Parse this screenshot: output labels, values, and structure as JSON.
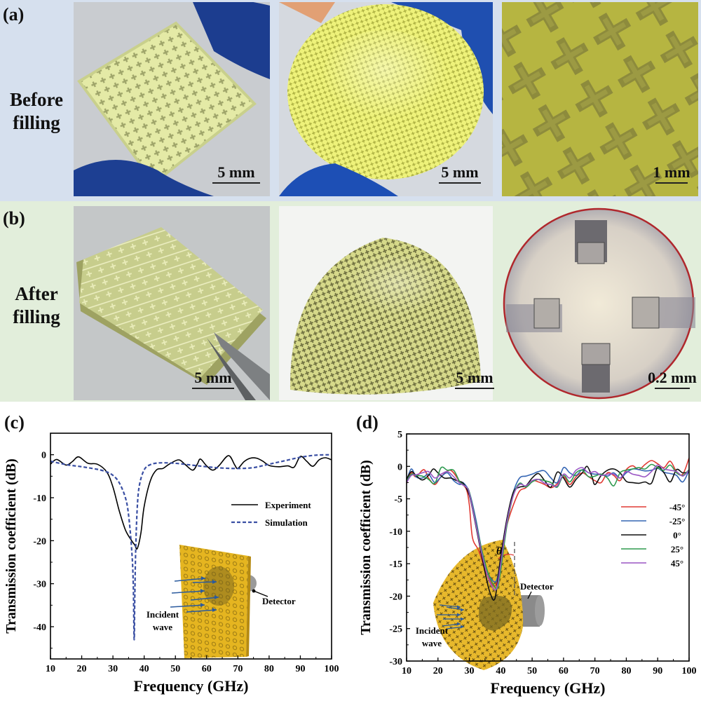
{
  "panels": {
    "a": {
      "label": "(a)",
      "row_label_1": "Before",
      "row_label_2": "filling",
      "scales": [
        "5 mm",
        "5 mm",
        "1 mm"
      ]
    },
    "b": {
      "label": "(b)",
      "row_label_1": "After",
      "row_label_2": "filling",
      "scales": [
        "5 mm",
        "5 mm",
        "0.2 mm"
      ]
    },
    "c": {
      "label": "(c)"
    },
    "d": {
      "label": "(d)"
    }
  },
  "colors": {
    "band_a": "#d6e0ee",
    "band_b": "#e2eedb",
    "sample_yellow": "#e6ec9a",
    "sample_green": "#a9ad55",
    "glove_blue": "#1c3d8f",
    "inset_gold": "#e5b520",
    "circle_border": "#b0272c"
  },
  "chart_data": [
    {
      "type": "line",
      "panel": "(c)",
      "xlabel": "Frequency (GHz)",
      "ylabel": "Transmission coefficient (dB)",
      "xlim": [
        10,
        100
      ],
      "ylim": [
        -47.5,
        5
      ],
      "xticks": [
        10,
        20,
        30,
        40,
        50,
        60,
        70,
        80,
        90,
        100
      ],
      "yticks": [
        0,
        -10,
        -20,
        -30,
        -40
      ],
      "legend_position": "upper-right",
      "series": [
        {
          "name": "Experiment",
          "color": "#000000",
          "style": "solid",
          "x": [
            10,
            12,
            15,
            17,
            19,
            22,
            25,
            28,
            30,
            32,
            34,
            36,
            37,
            37.8,
            39,
            40,
            42,
            44,
            46,
            48,
            51,
            53,
            55.5,
            57,
            58,
            60,
            62,
            64,
            67,
            69,
            70,
            72,
            74,
            76,
            78,
            80,
            83,
            86,
            88,
            90,
            92,
            94,
            96,
            98,
            100
          ],
          "y": [
            -2.2,
            -1.1,
            -2.4,
            -1.6,
            -0.5,
            -2,
            -2.2,
            -4,
            -7.5,
            -13,
            -17.5,
            -20,
            -21,
            -21.8,
            -18,
            -12,
            -6,
            -3.5,
            -3.2,
            -2.2,
            -1.2,
            -2.2,
            -3.6,
            -2.2,
            -1,
            -2.6,
            -3.6,
            -2.5,
            -0.2,
            -2.4,
            -3.2,
            -1.6,
            -0.8,
            -0.8,
            -1.5,
            -2.5,
            -2.8,
            -2.6,
            -2.9,
            -0.4,
            -1.5,
            -2.7,
            -1.2,
            -0.7,
            -1.2
          ]
        },
        {
          "name": "Simulation",
          "color": "#3a4fa3",
          "style": "dashed",
          "x": [
            10,
            15,
            20,
            25,
            28,
            30,
            32,
            34,
            35,
            36,
            36.5,
            36.8,
            37,
            37.3,
            37.8,
            38.5,
            40,
            42,
            45,
            50,
            55,
            60,
            65,
            70,
            75,
            80,
            85,
            90,
            95,
            100
          ],
          "y": [
            -1.5,
            -2.3,
            -2.8,
            -3.4,
            -4,
            -4.8,
            -6.5,
            -10,
            -14,
            -22,
            -30,
            -43,
            -33,
            -22,
            -12,
            -7,
            -3.5,
            -2.3,
            -1.9,
            -2,
            -2.4,
            -2.8,
            -3.1,
            -3.2,
            -3,
            -2.2,
            -1.4,
            -0.6,
            -0.1,
            0
          ]
        }
      ],
      "inset": {
        "labels": [
          "Incident",
          "wave",
          "Detector"
        ]
      }
    },
    {
      "type": "line",
      "panel": "(d)",
      "xlabel": "Frequency (GHz)",
      "ylabel": "Transmission coefficient (dB)",
      "xlim": [
        10,
        100
      ],
      "ylim": [
        -30,
        5
      ],
      "xticks": [
        10,
        20,
        30,
        40,
        50,
        60,
        70,
        80,
        90,
        100
      ],
      "yticks": [
        5,
        0,
        -5,
        -10,
        -15,
        -20,
        -25,
        -30
      ],
      "legend_position": "right",
      "series": [
        {
          "name": "-45°",
          "color": "#e03a33",
          "x": [
            10,
            11.5,
            13,
            15.5,
            17,
            19,
            21,
            24,
            27,
            29,
            30,
            31,
            33,
            35,
            36,
            37,
            38,
            39,
            40,
            42,
            44,
            46,
            48,
            50,
            52,
            54,
            56,
            58,
            60,
            62,
            64,
            66,
            68,
            70,
            72,
            74,
            76,
            78,
            80,
            82,
            84,
            86,
            88,
            90,
            92,
            94,
            96,
            98,
            100
          ],
          "y": [
            -2.6,
            -1,
            -1.6,
            -0.5,
            -1.8,
            -2.8,
            -1.6,
            -0.6,
            -2.4,
            -3.5,
            -6,
            -11,
            -13,
            -16,
            -17,
            -18,
            -18.5,
            -17.5,
            -14,
            -9,
            -6,
            -3.8,
            -3.3,
            -2.2,
            -2.4,
            -2.8,
            -3.3,
            -2.7,
            -1.6,
            -2.8,
            -1.6,
            -1.0,
            -1.6,
            -2.2,
            -2.5,
            -1.0,
            -1.4,
            -2.2,
            -0.5,
            0.1,
            -0.5,
            0.3,
            0.9,
            0.4,
            -0.2,
            0.8,
            -0.8,
            -1.2,
            1.3
          ]
        },
        {
          "name": "-25°",
          "color": "#3566b4",
          "x": [
            10,
            11.5,
            13,
            15,
            17,
            19,
            21,
            23,
            25,
            27,
            28,
            30,
            32,
            34,
            36,
            38,
            39,
            40,
            42,
            44,
            46,
            48,
            50,
            52,
            54,
            56,
            58,
            60,
            62,
            64,
            66,
            68,
            70,
            72,
            74,
            76,
            78,
            80,
            82,
            84,
            86,
            88,
            90,
            92,
            94,
            96,
            98,
            100
          ],
          "y": [
            -2.2,
            -0.4,
            -1.6,
            -1.8,
            -1.2,
            -2.5,
            -1.6,
            -1.0,
            -2.2,
            -2.8,
            -2.5,
            -4,
            -8,
            -13,
            -16.5,
            -17.8,
            -17,
            -14,
            -8,
            -4,
            -1.8,
            -1.5,
            -1.2,
            -0.8,
            -0.7,
            -1.8,
            -2.5,
            -0.2,
            -1.0,
            -1.4,
            -0.5,
            -1.0,
            -1.2,
            -1.2,
            -1.5,
            -1.0,
            -1.8,
            -1.0,
            -0.4,
            -0.5,
            -0.7,
            -0.6,
            -0.3,
            -0.9,
            -1.1,
            -1.4,
            -2.4,
            -0.6
          ]
        },
        {
          "name": "0°",
          "color": "#111111",
          "x": [
            10,
            11.5,
            13,
            15,
            17,
            18.5,
            20,
            22,
            24,
            26,
            28,
            30,
            32,
            34,
            36,
            37,
            37.8,
            38.5,
            40,
            42,
            44,
            46,
            48,
            50,
            52,
            54,
            56,
            58,
            60,
            62,
            64,
            66,
            67.5,
            69,
            70,
            72,
            74,
            76,
            78,
            80,
            82,
            84,
            86,
            88,
            90,
            92,
            94,
            96,
            98,
            100
          ],
          "y": [
            -2,
            -0.8,
            -1.4,
            -2.1,
            -1.4,
            -0.4,
            -1.0,
            -1.8,
            -1.8,
            -2.2,
            -2.6,
            -4.5,
            -9,
            -14,
            -18.5,
            -20,
            -20.6,
            -19.5,
            -14,
            -8,
            -4,
            -3.2,
            -3,
            -1.8,
            -1.1,
            -2.2,
            -3.2,
            -0.9,
            -1.8,
            -3.2,
            -2.0,
            -1.0,
            0,
            -1.5,
            -2.8,
            -1.4,
            -0.6,
            -0.4,
            -1.0,
            -2.3,
            -2.5,
            -2.6,
            -2.4,
            -2.6,
            -0.1,
            -1.0,
            -2.4,
            -0.5,
            -1.0,
            -0.8
          ]
        },
        {
          "name": "25°",
          "color": "#2e9a4f",
          "x": [
            10,
            11.5,
            13,
            15,
            17,
            19,
            21,
            23,
            25,
            27,
            29,
            30,
            32,
            34,
            36,
            38,
            39,
            40,
            42,
            44,
            46,
            48,
            50,
            52,
            54,
            56,
            58,
            60,
            62,
            64,
            66,
            68,
            70,
            72,
            74,
            76,
            78,
            80,
            82,
            84,
            86,
            88,
            90,
            92,
            94,
            96,
            98,
            100
          ],
          "y": [
            -2.3,
            -1.2,
            -1.4,
            -1.5,
            -2.0,
            -2.6,
            -0.2,
            -0.6,
            -0.6,
            -2.4,
            -3.2,
            -4,
            -8.5,
            -13,
            -16.5,
            -18.5,
            -18.7,
            -16,
            -9,
            -4.5,
            -2.6,
            -3.2,
            -2.4,
            -2.0,
            -2.2,
            -2.5,
            -3.2,
            -1.4,
            -2.4,
            -1.0,
            -0.6,
            -1.6,
            -1.5,
            -1.2,
            -1.8,
            -3.0,
            -1.0,
            -0.6,
            -0.4,
            -0.2,
            -0.4,
            0.3,
            -0.2,
            -0.6,
            0.2,
            -1.0,
            -1.4,
            -0.5
          ]
        },
        {
          "name": "45°",
          "color": "#9a55c4",
          "x": [
            10,
            11.5,
            13,
            15,
            17,
            19,
            21,
            23,
            25,
            27,
            29,
            30,
            32,
            34,
            36,
            38,
            39,
            40,
            42,
            44,
            46,
            48,
            50,
            52,
            54,
            56,
            58,
            60,
            62,
            64,
            66,
            68,
            70,
            72,
            74,
            76,
            78,
            80,
            82,
            84,
            86,
            88,
            90,
            92,
            94,
            96,
            98,
            100
          ],
          "y": [
            -2.5,
            -1.4,
            -1.3,
            -1.0,
            -0.8,
            -1.8,
            -1.2,
            -0.8,
            -1.6,
            -2.6,
            -3.2,
            -4.2,
            -8.8,
            -13.5,
            -17.2,
            -19,
            -18.2,
            -15,
            -8.5,
            -4.5,
            -2.8,
            -3.0,
            -2.2,
            -2.0,
            -2.6,
            -2.8,
            -3.0,
            -1.2,
            -1.8,
            -0.6,
            -0.2,
            -1.0,
            -0.8,
            -1.4,
            -1.2,
            -1.2,
            -1.8,
            -0.8,
            -1.2,
            -1.4,
            -1.6,
            -0.8,
            0.2,
            -0.4,
            -0.6,
            -0.8,
            -1.5,
            -0.6
          ]
        }
      ],
      "inset": {
        "labels": [
          "Incident",
          "wave",
          "Detector",
          "θ"
        ]
      }
    }
  ]
}
